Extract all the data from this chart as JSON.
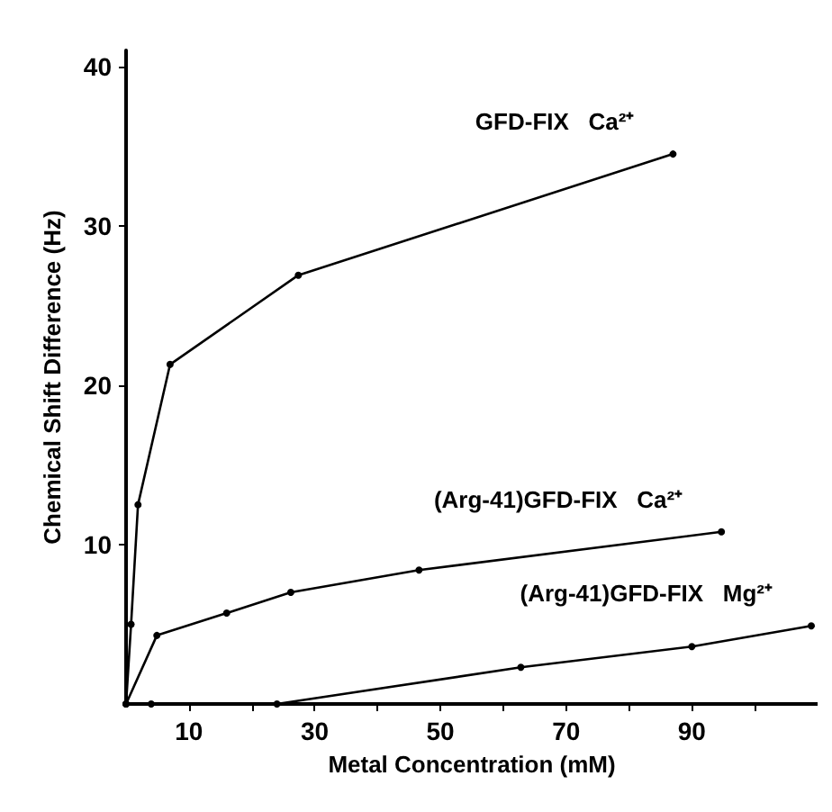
{
  "chart_data": {
    "type": "line",
    "xlabel": "Metal Concentration (mM)",
    "ylabel": "Chemical Shift Difference (Hz)",
    "xlim": [
      0,
      110
    ],
    "ylim": [
      0,
      41
    ],
    "xticks": [
      10,
      {
        "value": 20,
        "label": null
      },
      30,
      {
        "value": 40,
        "label": null
      },
      50,
      {
        "value": 60,
        "label": null
      },
      70,
      {
        "value": 80,
        "label": null
      },
      90,
      {
        "value": 100,
        "label": null
      }
    ],
    "yticks": [
      10,
      20,
      30,
      40
    ],
    "grid": false,
    "legend": false,
    "marker": "circle",
    "line_style": "solid",
    "series": [
      {
        "name": "GFD-FIX   Ca²⁺",
        "color": "#000000",
        "x": [
          0,
          0.8,
          1.9,
          7,
          27.4,
          87
        ],
        "values": [
          0,
          5,
          12.5,
          21.3,
          26.9,
          34.5
        ]
      },
      {
        "name": "(Arg-41)GFD-FIX   Ca²⁺",
        "color": "#000000",
        "x": [
          0,
          4.9,
          16,
          26.2,
          46.6,
          94.7
        ],
        "values": [
          0,
          4.3,
          5.7,
          7,
          8.4,
          10.8
        ]
      },
      {
        "name": "(Arg-41)GFD-FIX   Mg²⁺",
        "color": "#000000",
        "x": [
          0,
          4,
          24,
          62.8,
          90,
          109
        ],
        "values": [
          0,
          0,
          0,
          2.3,
          3.6,
          4.9
        ]
      }
    ]
  }
}
